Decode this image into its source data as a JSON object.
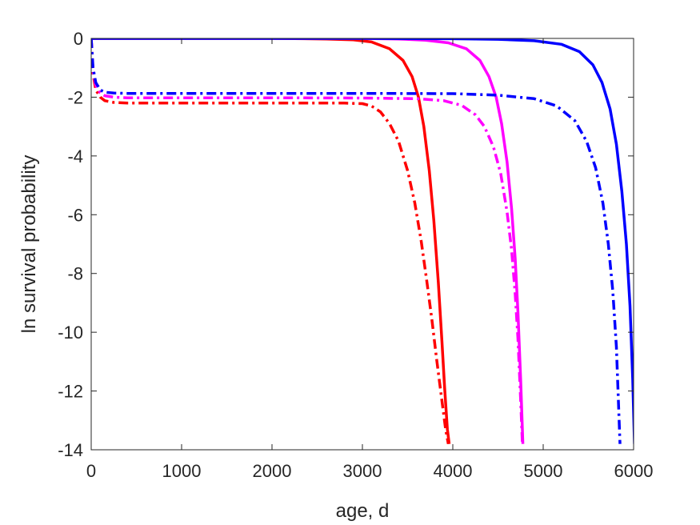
{
  "chart_data": {
    "type": "line",
    "xlabel": "age, d",
    "ylabel": "ln survival probability",
    "xlim": [
      0,
      6000
    ],
    "ylim": [
      -14,
      0
    ],
    "xticks": [
      0,
      1000,
      2000,
      3000,
      4000,
      5000,
      6000
    ],
    "yticks": [
      0,
      -2,
      -4,
      -6,
      -8,
      -10,
      -12,
      -14
    ],
    "grid": false,
    "series": [
      {
        "color": "#ff0000",
        "style": "solid",
        "x": [
          0,
          1000,
          2000,
          2600,
          2900,
          3100,
          3300,
          3450,
          3550,
          3620,
          3680,
          3740,
          3790,
          3840,
          3880,
          3910,
          3940,
          3960
        ],
        "y": [
          0,
          0,
          0,
          -0.02,
          -0.05,
          -0.12,
          -0.35,
          -0.75,
          -1.3,
          -2.0,
          -3.0,
          -4.5,
          -6.2,
          -8.3,
          -10.3,
          -11.9,
          -13.3,
          -13.8
        ]
      },
      {
        "color": "#ff0000",
        "style": "dashdot",
        "x": [
          0,
          20,
          50,
          100,
          150,
          250,
          400,
          1000,
          2000,
          2800,
          3000,
          3100,
          3200,
          3300,
          3400,
          3500,
          3580,
          3650,
          3710,
          3770,
          3820,
          3870,
          3920,
          3950
        ],
        "y": [
          0,
          -1.2,
          -1.75,
          -2.0,
          -2.12,
          -2.18,
          -2.2,
          -2.2,
          -2.2,
          -2.2,
          -2.22,
          -2.3,
          -2.5,
          -2.9,
          -3.5,
          -4.5,
          -5.6,
          -6.9,
          -8.2,
          -9.6,
          -10.9,
          -12.1,
          -13.3,
          -13.8
        ]
      },
      {
        "color": "#ff00ff",
        "style": "solid",
        "x": [
          0,
          1000,
          2000,
          3000,
          3400,
          3700,
          3950,
          4150,
          4300,
          4400,
          4480,
          4540,
          4600,
          4650,
          4690,
          4720,
          4750,
          4775
        ],
        "y": [
          0,
          0,
          0,
          0,
          -0.02,
          -0.06,
          -0.15,
          -0.35,
          -0.75,
          -1.3,
          -2.0,
          -2.9,
          -4.2,
          -5.8,
          -7.5,
          -9.3,
          -11.6,
          -13.8
        ]
      },
      {
        "color": "#ff00ff",
        "style": "dashdot",
        "x": [
          0,
          20,
          50,
          100,
          150,
          250,
          400,
          1000,
          2000,
          3000,
          3600,
          3900,
          4100,
          4250,
          4350,
          4450,
          4530,
          4600,
          4650,
          4690,
          4720,
          4750,
          4770
        ],
        "y": [
          0,
          -1.1,
          -1.6,
          -1.85,
          -1.95,
          -2.0,
          -2.02,
          -2.02,
          -2.02,
          -2.03,
          -2.05,
          -2.12,
          -2.28,
          -2.6,
          -3.0,
          -3.7,
          -4.6,
          -5.9,
          -7.2,
          -8.7,
          -10.2,
          -12.3,
          -13.8
        ]
      },
      {
        "color": "#0000ff",
        "style": "solid",
        "x": [
          0,
          1000,
          2000,
          3000,
          4000,
          4500,
          4900,
          5200,
          5400,
          5550,
          5650,
          5740,
          5810,
          5870,
          5920,
          5960,
          5990,
          6010
        ],
        "y": [
          0,
          0,
          0,
          0,
          -0.01,
          -0.03,
          -0.08,
          -0.2,
          -0.45,
          -0.9,
          -1.5,
          -2.4,
          -3.6,
          -5.2,
          -7.0,
          -9.1,
          -11.6,
          -13.8
        ]
      },
      {
        "color": "#0000ff",
        "style": "dashdot",
        "x": [
          0,
          20,
          50,
          100,
          150,
          250,
          400,
          1000,
          2000,
          3000,
          4000,
          4500,
          4900,
          5150,
          5350,
          5480,
          5580,
          5660,
          5720,
          5770,
          5810,
          5850
        ],
        "y": [
          0,
          -1.0,
          -1.5,
          -1.75,
          -1.83,
          -1.86,
          -1.87,
          -1.87,
          -1.87,
          -1.87,
          -1.88,
          -1.93,
          -2.05,
          -2.3,
          -2.8,
          -3.5,
          -4.4,
          -5.6,
          -7.0,
          -8.6,
          -10.5,
          -13.8
        ]
      }
    ]
  }
}
